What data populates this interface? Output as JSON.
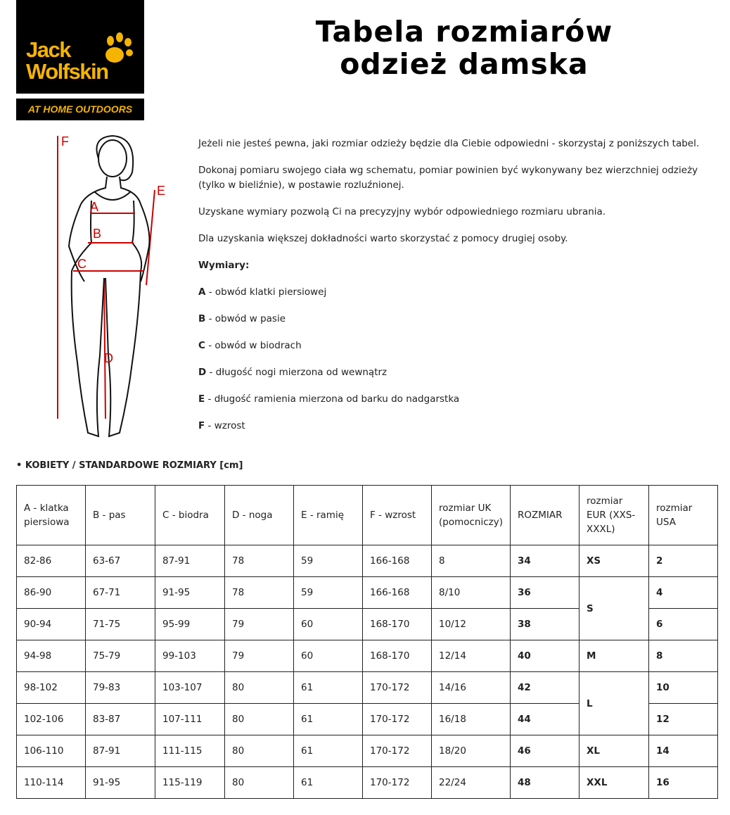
{
  "logo": {
    "line1": "Jack",
    "line2": "Wolfskin",
    "tagline": "AT HOME OUTDOORS",
    "color": "#f5b400"
  },
  "title": {
    "line1": "Tabela rozmiarów",
    "line2": "odzież damska"
  },
  "figure_labels": [
    "A",
    "B",
    "C",
    "D",
    "E",
    "F"
  ],
  "intro": [
    "Jeżeli nie jesteś pewna, jaki rozmiar odzieży będzie dla Ciebie odpowiedni - skorzystaj z poniższych tabel.",
    "Dokonaj pomiaru swojego ciała wg schematu, pomiar powinien być wykonywany bez wierzchniej odzieży (tylko w bieliźnie), w postawie rozluźnionej.",
    "Uzyskane wymiary pozwolą Ci na precyzyjny wybór odpowiedniego rozmiaru ubrania.",
    "Dla uzyskania większej dokładności warto skorzystać z pomocy drugiej osoby."
  ],
  "measures_title": "Wymiary:",
  "measures": [
    {
      "k": "A",
      "v": " - obwód klatki piersiowej"
    },
    {
      "k": "B",
      "v": " - obwód w pasie"
    },
    {
      "k": "C",
      "v": " - obwód w biodrach"
    },
    {
      "k": "D",
      "v": " - długość nogi mierzona od wewnątrz"
    },
    {
      "k": "E",
      "v": " - długość ramienia mierzona od barku do nadgarstka"
    },
    {
      "k": "F",
      "v": " - wzrost"
    }
  ],
  "section": "• KOBIETY / STANDARDOWE ROZMIARY [cm]",
  "table": {
    "headers": [
      "A - klatka piersiowa",
      "B - pas",
      "C - biodra",
      "D - noga",
      "E - ramię",
      "F - wzrost",
      "rozmiar UK (pomocniczy)",
      "ROZMIAR",
      "rozmiar EUR (XXS-XXXL)",
      "rozmiar USA"
    ],
    "rows": [
      [
        "82-86",
        "63-67",
        "87-91",
        "78",
        "59",
        "166-168",
        "8",
        "34",
        "XS",
        "2"
      ],
      [
        "86-90",
        "67-71",
        "91-95",
        "78",
        "59",
        "166-168",
        "8/10",
        "36",
        "S",
        "4"
      ],
      [
        "90-94",
        "71-75",
        "95-99",
        "79",
        "60",
        "168-170",
        "10/12",
        "38",
        "",
        "6"
      ],
      [
        "94-98",
        "75-79",
        "99-103",
        "79",
        "60",
        "168-170",
        "12/14",
        "40",
        "M",
        "8"
      ],
      [
        "98-102",
        "79-83",
        "103-107",
        "80",
        "61",
        "170-172",
        "14/16",
        "42",
        "L",
        "10"
      ],
      [
        "102-106",
        "83-87",
        "107-111",
        "80",
        "61",
        "170-172",
        "16/18",
        "44",
        "",
        "12"
      ],
      [
        "106-110",
        "87-91",
        "111-115",
        "80",
        "61",
        "170-172",
        "18/20",
        "46",
        "XL",
        "14"
      ],
      [
        "110-114",
        "91-95",
        "115-119",
        "80",
        "61",
        "170-172",
        "22/24",
        "48",
        "XXL",
        "16"
      ]
    ],
    "eur_rowspans": [
      1,
      2,
      0,
      1,
      2,
      0,
      1,
      1
    ]
  }
}
